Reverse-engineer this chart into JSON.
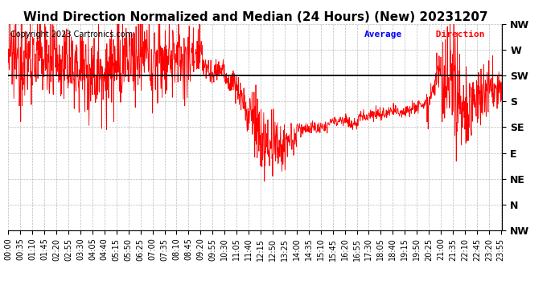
{
  "title": "Wind Direction Normalized and Median (24 Hours) (New) 20231207",
  "copyright": "Copyright 2023 Cartronics.com",
  "legend_blue": "Average",
  "legend_red": " Direction",
  "line_color": "#ff0000",
  "median_color": "#000000",
  "median_value": 225,
  "avg_direction_color": "#0000ff",
  "background_color": "#ffffff",
  "grid_color": "#aaaaaa",
  "ytick_labels": [
    "NW",
    "W",
    "SW",
    "S",
    "SE",
    "E",
    "NE",
    "N",
    "NW"
  ],
  "ytick_values": [
    315,
    270,
    225,
    180,
    135,
    90,
    45,
    0,
    -45
  ],
  "ymin": -45,
  "ymax": 315,
  "title_fontsize": 11,
  "copyright_fontsize": 7,
  "axis_fontsize": 9,
  "tick_fontsize": 7,
  "time_labels": [
    "00:00",
    "00:35",
    "01:10",
    "01:45",
    "02:20",
    "02:55",
    "03:30",
    "04:05",
    "04:40",
    "05:15",
    "05:50",
    "06:25",
    "07:00",
    "07:35",
    "08:10",
    "08:45",
    "09:20",
    "09:55",
    "10:30",
    "11:05",
    "11:40",
    "12:15",
    "12:50",
    "13:25",
    "14:00",
    "14:35",
    "15:10",
    "15:45",
    "16:20",
    "16:55",
    "17:30",
    "18:05",
    "18:40",
    "19:15",
    "19:50",
    "20:25",
    "21:00",
    "21:35",
    "22:10",
    "22:45",
    "23:20",
    "23:55"
  ]
}
